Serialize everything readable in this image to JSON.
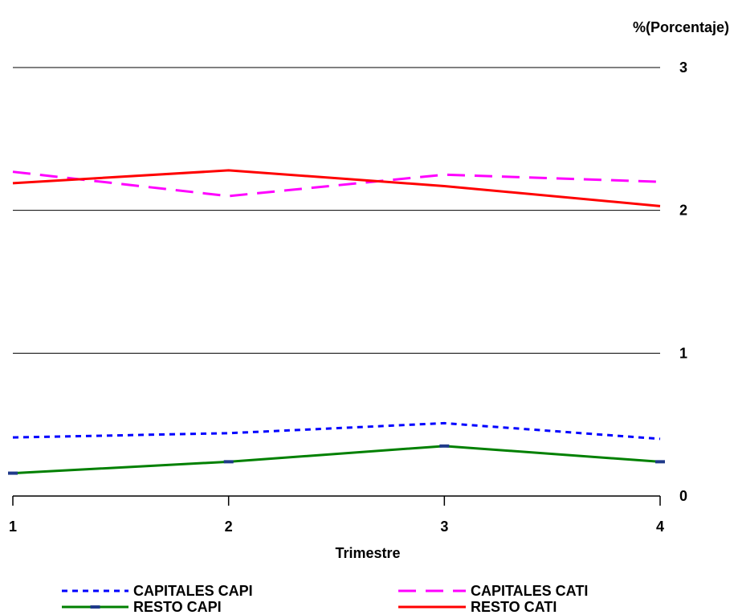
{
  "chart_data": {
    "type": "line",
    "unit_label": "%(Porcentaje)",
    "xlabel": "Trimestre",
    "ylabel": "",
    "x": [
      1,
      2,
      3,
      4
    ],
    "x_tick_labels": [
      "1",
      "2",
      "3",
      "4"
    ],
    "ylim": [
      0,
      3
    ],
    "y_ticks": [
      0,
      1,
      2,
      3
    ],
    "y_tick_labels": [
      "0",
      "1",
      "2",
      "3"
    ],
    "y_axis_side": "right",
    "grid": true,
    "legend_placement": "bottom",
    "series": [
      {
        "name": "CAPITALES CAPI",
        "values": [
          0.41,
          0.44,
          0.51,
          0.4
        ],
        "color": "#0000ff",
        "style": "dotted"
      },
      {
        "name": "CAPITALES CATI",
        "values": [
          2.27,
          2.1,
          2.25,
          2.2
        ],
        "color": "#ff00ff",
        "style": "dashed"
      },
      {
        "name": "RESTO CAPI",
        "values": [
          0.16,
          0.24,
          0.35,
          0.24
        ],
        "color": "#008000",
        "style": "solid",
        "markers": true
      },
      {
        "name": "RESTO CATI",
        "values": [
          2.19,
          2.28,
          2.17,
          2.03
        ],
        "color": "#ff0000",
        "style": "solid"
      }
    ]
  }
}
